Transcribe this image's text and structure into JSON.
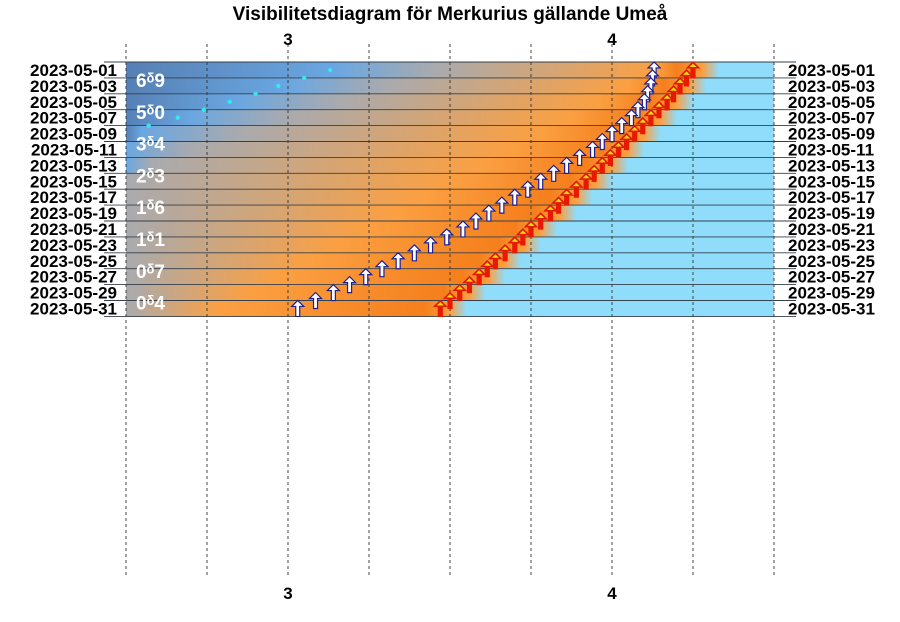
{
  "chart_data": {
    "type": "visibility-diagram",
    "title": "Visibilitetsdiagram för Merkurius gällande Umeå",
    "x_axis": {
      "range_hours": [
        2.5,
        4.5
      ],
      "tick_labels": [
        "3",
        "4"
      ],
      "tick_values": [
        3,
        4
      ],
      "minor_ticks": [
        2.5,
        2.75,
        3.25,
        3.5,
        3.75,
        4.25,
        4.5
      ]
    },
    "dates": [
      "2023-05-01",
      "2023-05-03",
      "2023-05-05",
      "2023-05-07",
      "2023-05-09",
      "2023-05-11",
      "2023-05-13",
      "2023-05-15",
      "2023-05-17",
      "2023-05-19",
      "2023-05-21",
      "2023-05-23",
      "2023-05-25",
      "2023-05-27",
      "2023-05-29",
      "2023-05-31"
    ],
    "magnitudes": [
      {
        "date": "2023-05-01",
        "label": "6ᵟ9"
      },
      {
        "date": "2023-05-05",
        "label": "5ᵟ0"
      },
      {
        "date": "2023-05-09",
        "label": "3ᵟ4"
      },
      {
        "date": "2023-05-13",
        "label": "2ᵟ3"
      },
      {
        "date": "2023-05-17",
        "label": "1ᵟ6"
      },
      {
        "date": "2023-05-21",
        "label": "1ᵟ1"
      },
      {
        "date": "2023-05-25",
        "label": "0ᵟ7"
      },
      {
        "date": "2023-05-29",
        "label": "0ᵟ4"
      }
    ],
    "planet_rise_hours": [
      4.13,
      4.12,
      4.1,
      4.06,
      4.0,
      3.94,
      3.86,
      3.78,
      3.7,
      3.62,
      3.54,
      3.44,
      3.34,
      3.24,
      3.14,
      3.03
    ],
    "sunrise_hours": [
      4.25,
      4.21,
      4.17,
      4.12,
      4.07,
      4.02,
      3.97,
      3.92,
      3.86,
      3.81,
      3.75,
      3.7,
      3.64,
      3.59,
      3.53,
      3.47
    ],
    "dawn_start_hours": [
      4.14,
      4.05,
      3.96,
      3.87,
      3.78,
      3.69,
      3.6,
      3.51,
      3.42,
      3.33,
      3.24,
      3.15,
      3.06,
      2.97,
      2.88,
      2.79
    ],
    "twilight_start_hours": [
      3.45,
      3.3,
      3.15,
      3.0,
      2.85,
      2.7,
      2.58,
      2.5,
      2.5,
      2.5,
      2.5,
      2.5,
      2.5,
      2.5,
      2.5,
      2.5
    ],
    "dark_sky_points": [
      {
        "date": "2023-05-01",
        "hour": 3.13
      },
      {
        "date": "2023-05-02",
        "hour": 3.05
      },
      {
        "date": "2023-05-03",
        "hour": 2.97
      },
      {
        "date": "2023-05-04",
        "hour": 2.9
      },
      {
        "date": "2023-05-05",
        "hour": 2.82
      },
      {
        "date": "2023-05-06",
        "hour": 2.74
      },
      {
        "date": "2023-05-07",
        "hour": 2.66
      },
      {
        "date": "2023-05-08",
        "hour": 2.57
      }
    ],
    "colors": {
      "night": "#5680b4",
      "twilight": "#6aa7e2",
      "gray": "#a9aaae",
      "dawn": "#fba042",
      "dawn_bright": "#f57f1c",
      "day": "#8fdcfb",
      "sun_arrow": "#e61a00",
      "sun_arrow_tip": "#f2e000",
      "planet_arrow": "#1c1f96",
      "planet_arrow_fill": "#ffffff",
      "dot": "#37e6ee"
    }
  }
}
